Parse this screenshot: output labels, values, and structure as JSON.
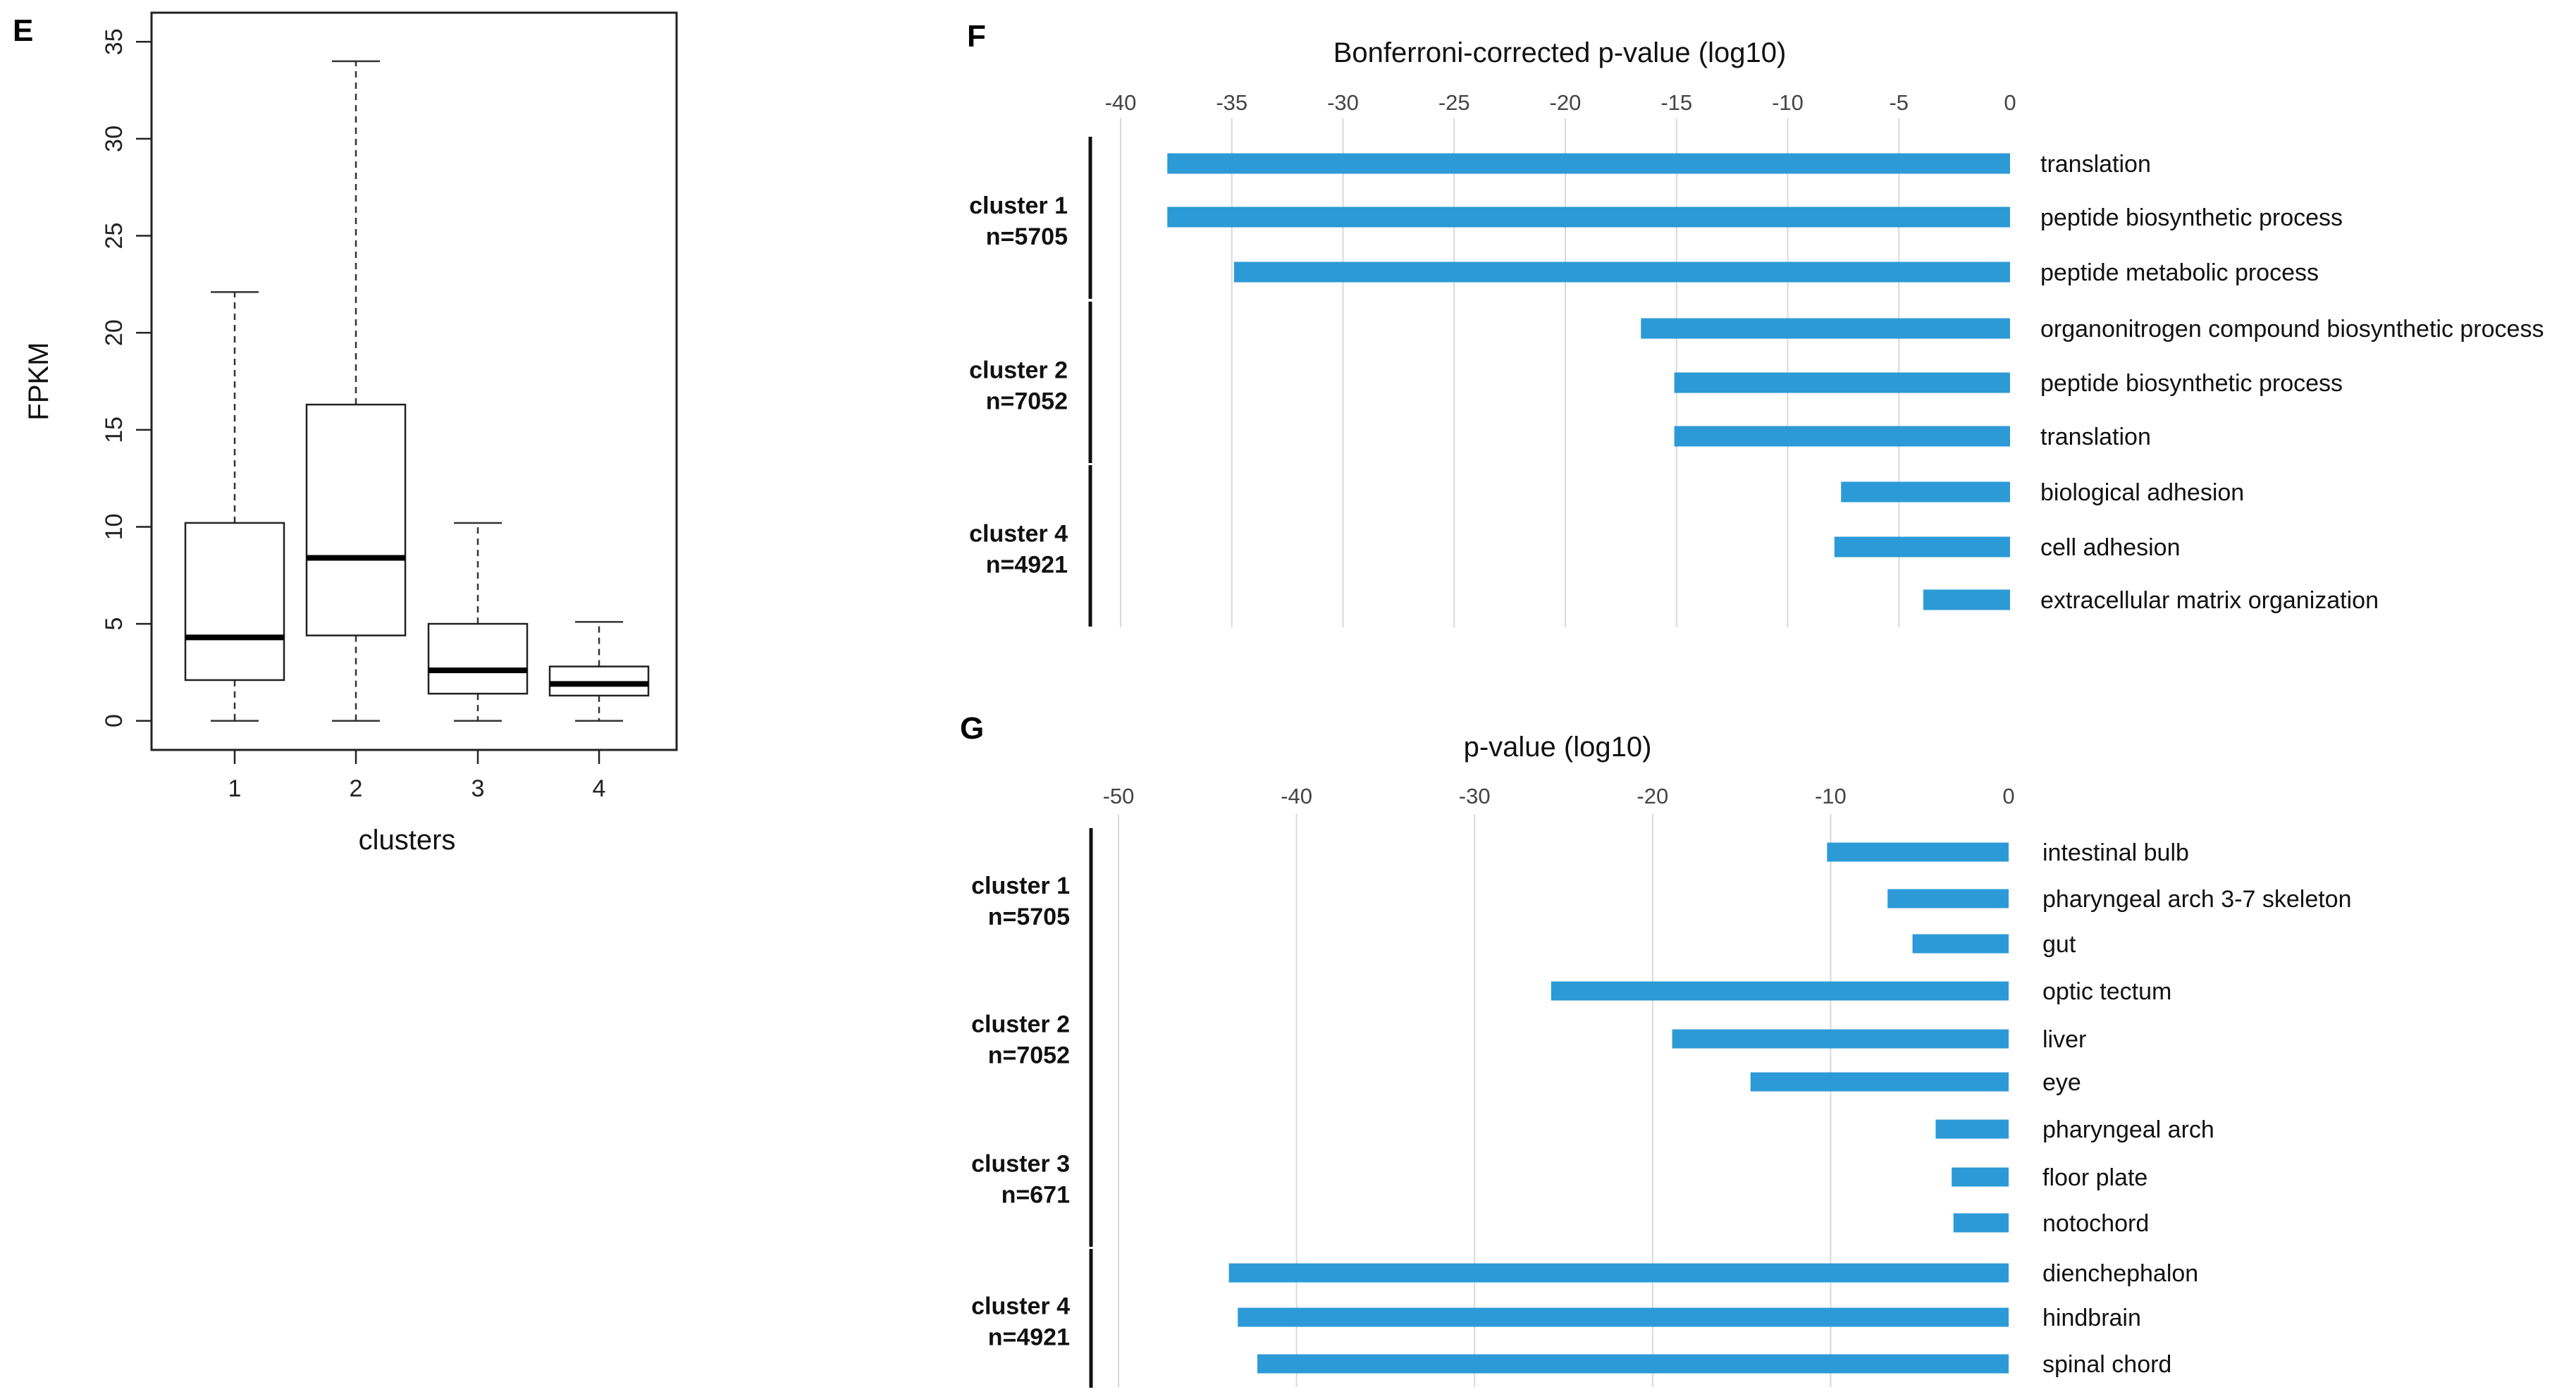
{
  "panels": {
    "E": "E",
    "F": "F",
    "G": "G"
  },
  "colors": {
    "bar": "#2C9AD6",
    "grid": "#D9D9D9",
    "axis": "#222222",
    "tick_text": "#444444"
  },
  "chart_data": [
    {
      "id": "E",
      "type": "box",
      "title": "",
      "xlabel": "clusters",
      "ylabel": "FPKM",
      "categories": [
        "1",
        "2",
        "3",
        "4"
      ],
      "ylim": [
        -1.5,
        36.5
      ],
      "yticks": [
        0,
        5,
        10,
        15,
        20,
        25,
        30,
        35
      ],
      "boxes": [
        {
          "cluster": "1",
          "min": 0,
          "q1": 2.1,
          "median": 4.3,
          "q3": 10.2,
          "max": 22.1
        },
        {
          "cluster": "2",
          "min": 0,
          "q1": 4.4,
          "median": 8.4,
          "q3": 16.3,
          "max": 34.0
        },
        {
          "cluster": "3",
          "min": 0,
          "q1": 1.4,
          "median": 2.6,
          "q3": 5.0,
          "max": 10.2
        },
        {
          "cluster": "4",
          "min": 0,
          "q1": 1.3,
          "median": 1.9,
          "q3": 2.8,
          "max": 5.1
        }
      ]
    },
    {
      "id": "F",
      "type": "bar",
      "orientation": "horizontal",
      "title": "Bonferroni-corrected p-value (log10)",
      "xlim": [
        -40,
        0
      ],
      "xticks": [
        -40,
        -35,
        -30,
        -25,
        -20,
        -15,
        -10,
        -5,
        0
      ],
      "groups": [
        {
          "name": "cluster 1",
          "n": "n=5705",
          "terms": [
            {
              "label": "translation",
              "value": -37.9
            },
            {
              "label": "peptide biosynthetic process",
              "value": -37.9
            },
            {
              "label": "peptide metabolic process",
              "value": -34.9
            }
          ]
        },
        {
          "name": "cluster 2",
          "n": "n=7052",
          "terms": [
            {
              "label": "organonitrogen compound biosynthetic process",
              "value": -16.6
            },
            {
              "label": "peptide biosynthetic process",
              "value": -15.1
            },
            {
              "label": "translation",
              "value": -15.1
            }
          ]
        },
        {
          "name": "cluster 4",
          "n": "n=4921",
          "terms": [
            {
              "label": "biological adhesion",
              "value": -7.6
            },
            {
              "label": "cell adhesion",
              "value": -7.9
            },
            {
              "label": "extracellular matrix organization",
              "value": -3.9
            }
          ]
        }
      ]
    },
    {
      "id": "G",
      "type": "bar",
      "orientation": "horizontal",
      "title": "p-value (log10)",
      "xlim": [
        -50,
        0
      ],
      "xticks": [
        -50,
        -40,
        -30,
        -20,
        -10,
        0
      ],
      "groups": [
        {
          "name": "cluster 1",
          "n": "n=5705",
          "terms": [
            {
              "label": "intestinal bulb",
              "value": -10.2
            },
            {
              "label": "pharyngeal arch 3-7 skeleton",
              "value": -6.8
            },
            {
              "label": "gut",
              "value": -5.4
            }
          ]
        },
        {
          "name": "cluster 2",
          "n": "n=7052",
          "terms": [
            {
              "label": "optic tectum",
              "value": -25.7
            },
            {
              "label": "liver",
              "value": -18.9
            },
            {
              "label": "eye",
              "value": -14.5
            }
          ]
        },
        {
          "name": "cluster 3",
          "n": "n=671",
          "terms": [
            {
              "label": "pharyngeal arch",
              "value": -4.1
            },
            {
              "label": "floor plate",
              "value": -3.2
            },
            {
              "label": "notochord",
              "value": -3.1
            }
          ]
        },
        {
          "name": "cluster 4",
          "n": "n=4921",
          "terms": [
            {
              "label": "dienchephalon",
              "value": -43.8
            },
            {
              "label": "hindbrain",
              "value": -43.3
            },
            {
              "label": "spinal chord",
              "value": -42.2
            }
          ]
        }
      ]
    }
  ]
}
